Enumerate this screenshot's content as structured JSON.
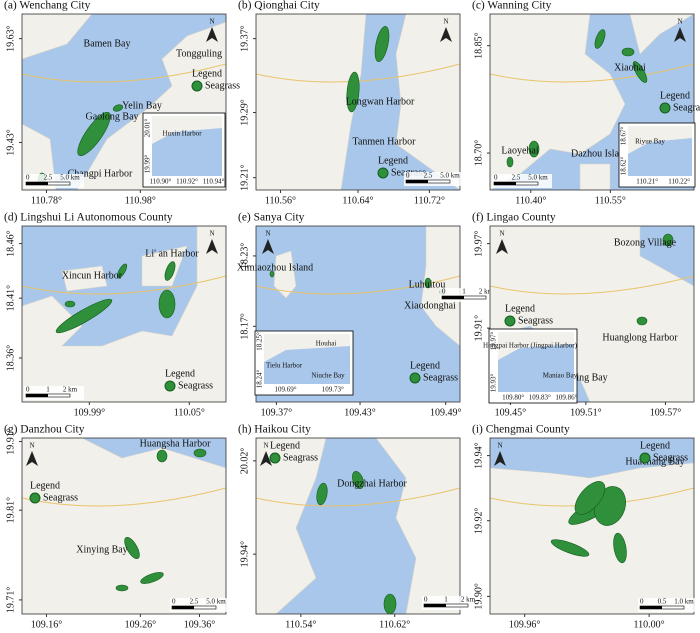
{
  "panels": [
    {
      "title": "(a) Wenchang City",
      "north": "N",
      "places": [
        "Bamen Bay",
        "Tongguling",
        "Yelin Bay",
        "Gaolong Bay",
        "Changpi Harbor"
      ],
      "legend": {
        "title": "Legend",
        "item": "Seagrass"
      },
      "scale": [
        "0",
        "2.5",
        "5.0 km"
      ],
      "xticks": [
        "110.78°",
        "110.98°"
      ],
      "yticks": [
        "19.63°",
        "19.43°"
      ],
      "inset": {
        "labels": [
          "Huxin Harbor"
        ],
        "xticks": [
          "110.90°",
          "110.92°",
          "110.94°"
        ],
        "yticks": [
          "20.01°",
          "19.99°"
        ]
      }
    },
    {
      "title": "(b) Qionghai City",
      "north": "N",
      "places": [
        "Longwan Harbor",
        "Tanmen Harbor"
      ],
      "legend": {
        "title": "Legend",
        "item": "Seagrass"
      },
      "scale": [
        "0",
        "2.5",
        "5.0 km"
      ],
      "xticks": [
        "110.56°",
        "110.64°",
        "110.72°"
      ],
      "yticks": [
        "19.37°",
        "19.29°",
        "19.21°"
      ]
    },
    {
      "title": "(c) Wanning City",
      "north": "N",
      "places": [
        "Xiaohai",
        "Laoyehai",
        "Dazhou Island"
      ],
      "legend": {
        "title": "Legend",
        "item": "Seagrass"
      },
      "scale": [
        "0",
        "2.5",
        "5.0 km"
      ],
      "xticks": [
        "110.40°",
        "110.55°"
      ],
      "yticks": [
        "18.85°",
        "18.70°"
      ],
      "inset": {
        "labels": [
          "Riyue Bay"
        ],
        "xticks": [
          "110.21°",
          "110.22°"
        ],
        "yticks": [
          "18.67°",
          "18.62°"
        ]
      }
    },
    {
      "title": "(d) Lingshui Li Autonomous County",
      "north": "N",
      "places": [
        "Xincun Harbor",
        "Li' an Harbor"
      ],
      "legend": {
        "title": "Legend",
        "item": "Seagrass"
      },
      "scale": [
        "0",
        "1",
        "2 km"
      ],
      "xticks": [
        "109.99°",
        "110.05°"
      ],
      "yticks": [
        "18.46°",
        "18.41°",
        "18.36°"
      ]
    },
    {
      "title": "(e) Sanya City",
      "north": "N",
      "places": [
        "Ximiaozhou Island",
        "Luhuitou",
        "Xiaodonghai"
      ],
      "legend": {
        "title": "Legend",
        "item": "Seagrass"
      },
      "scale": [
        "0",
        "1",
        "2 km"
      ],
      "xticks": [
        "109.37°",
        "109.43°",
        "109.49°"
      ],
      "yticks": [
        "18.23°",
        "18.17°"
      ],
      "inset": {
        "labels": [
          "Houhai",
          "Tielu Harbor",
          "Niuche Bay"
        ],
        "xticks": [
          "109.69°",
          "109.73°"
        ],
        "yticks": [
          "18.25°",
          "18.24°"
        ]
      }
    },
    {
      "title": "(f) Lingao County",
      "north": "N",
      "places": [
        "Bozong Village",
        "Huanglong Harbor",
        "Xinying Bay"
      ],
      "legend": {
        "title": "Legend",
        "item": "Seagrass"
      },
      "scale": [
        "0",
        "1",
        "2 km"
      ],
      "xticks": [
        "109.45°",
        "109.51°",
        "109.57°"
      ],
      "yticks": [
        "19.97°",
        "19.91°"
      ],
      "inset": {
        "labels": [
          "Hongpai Harbor (Jingpai Harbor)",
          "Maniao Bay"
        ],
        "xticks": [
          "109.80°",
          "109.83°",
          "109.86°"
        ],
        "yticks": [
          "19.97°",
          "19.93°"
        ]
      }
    },
    {
      "title": "(g) Danzhou City",
      "north": "N",
      "places": [
        "Huangsha Harbor",
        "Xinying Bay"
      ],
      "legend": {
        "title": "Legend",
        "item": "Seagrass"
      },
      "scale": [
        "0",
        "2.5",
        "5.0 km"
      ],
      "xticks": [
        "109.16°",
        "109.26°",
        "109.36°"
      ],
      "yticks": [
        "19.91°",
        "19.81°",
        "19.71°"
      ]
    },
    {
      "title": "(h) Haikou City",
      "north": "N",
      "places": [
        "Dongzhai Harbor"
      ],
      "legend": {
        "title": "Legend",
        "item": "Seagrass"
      },
      "scale": [
        "0",
        "1",
        "2 km"
      ],
      "xticks": [
        "110.54°",
        "110.62°"
      ],
      "yticks": [
        "20.02°",
        "19.94°"
      ]
    },
    {
      "title": "(i) Chengmai County",
      "north": "N",
      "places": [
        "Huachang Bay"
      ],
      "legend": {
        "title": "Legend",
        "item": "Seagrass"
      },
      "scale": [
        "0",
        "0.5",
        "1.0 km"
      ],
      "xticks": [
        "109.96°",
        "110.00°"
      ],
      "yticks": [
        "19.94°",
        "19.92°",
        "19.90°"
      ]
    }
  ]
}
